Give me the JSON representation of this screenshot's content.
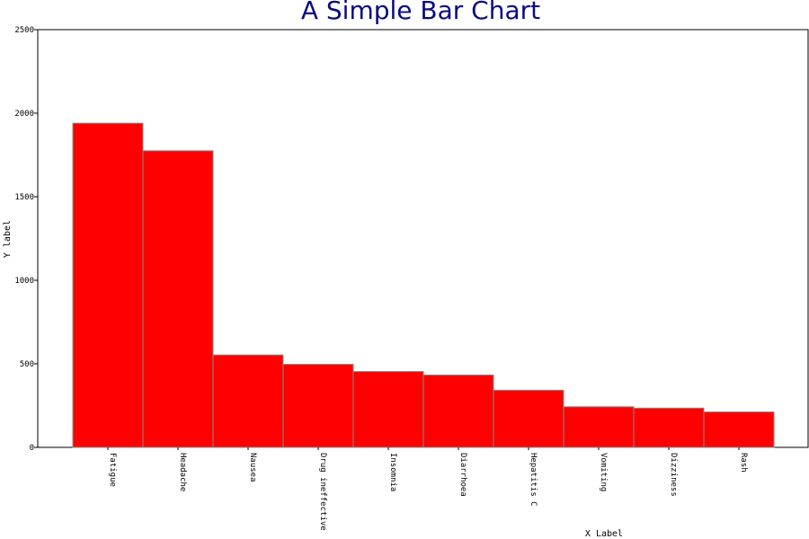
{
  "chart_data": {
    "type": "bar",
    "title": "A Simple Bar Chart",
    "xlabel": "X Label",
    "ylabel": "Y label",
    "categories": [
      "Fatigue",
      "Headache",
      "Nausea",
      "Drug ineffective",
      "Insomnia",
      "Diarrhoea",
      "Hepatitis C",
      "Vomiting",
      "Dizziness",
      "Rash"
    ],
    "values": [
      1940,
      1775,
      553,
      497,
      454,
      433,
      342,
      243,
      235,
      212
    ],
    "ylim": [
      0,
      2500
    ],
    "yticks": [
      "0",
      "500",
      "1000",
      "1500",
      "2000",
      "2500"
    ],
    "grid": false,
    "bar_color": "#ff0000",
    "title_color": "#0b0b80"
  }
}
